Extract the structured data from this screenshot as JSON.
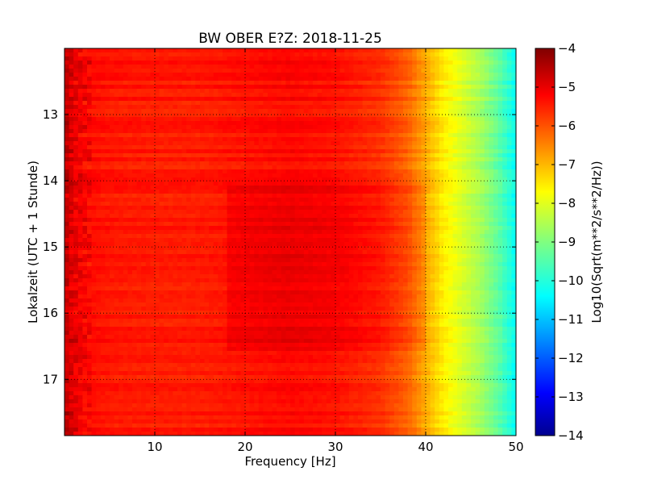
{
  "chart_data": {
    "type": "heatmap",
    "title": "BW OBER E?Z: 2018-11-25",
    "xlabel": "Frequency [Hz]",
    "ylabel": "Lokalzeit (UTC + 1 Stunde)",
    "xlim": [
      0,
      50
    ],
    "ylim": [
      12,
      17.85
    ],
    "y_inverted": true,
    "xticks": [
      10,
      20,
      30,
      40,
      50
    ],
    "yticks": [
      13,
      14,
      15,
      16,
      17
    ],
    "grid": true,
    "colorbar": {
      "label": "Log10(Sqrt(m**2/s**2/Hz))",
      "range": [
        -14,
        -4
      ],
      "ticks": [
        -4,
        -5,
        -6,
        -7,
        -8,
        -9,
        -10,
        -11,
        -12,
        -13,
        -14
      ],
      "colormap": "jet"
    },
    "profile": {
      "frequency": [
        0,
        1,
        2,
        5,
        10,
        15,
        20,
        25,
        30,
        35,
        38,
        40,
        42,
        44,
        46,
        48,
        50
      ],
      "log_amplitude": [
        -4.7,
        -5.1,
        -5.3,
        -5.45,
        -5.5,
        -5.5,
        -5.4,
        -5.3,
        -5.4,
        -5.7,
        -6.2,
        -6.9,
        -7.6,
        -8.1,
        -8.6,
        -9.3,
        -10.2
      ]
    },
    "bands": [
      {
        "start": 12.0,
        "end": 14.05,
        "offset": 0.0
      },
      {
        "start": 14.05,
        "end": 16.6,
        "offset": 0.25
      },
      {
        "start": 16.6,
        "end": 17.85,
        "offset": 0.0
      }
    ]
  }
}
